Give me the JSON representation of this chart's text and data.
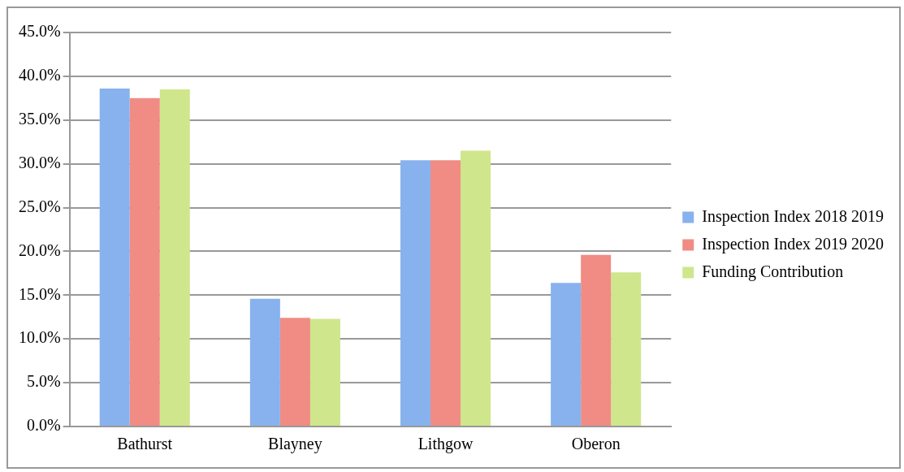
{
  "chart_data": {
    "type": "bar",
    "categories": [
      "Bathurst",
      "Blayney",
      "Lithgow",
      "Oberon"
    ],
    "series": [
      {
        "name": "Inspection Index 2018 2019",
        "color": "#88b2ee",
        "values": [
          38.6,
          14.6,
          30.4,
          16.4
        ]
      },
      {
        "name": "Inspection Index 2019 2020",
        "color": "#f08c84",
        "values": [
          37.5,
          12.4,
          30.4,
          19.6
        ]
      },
      {
        "name": "Funding Contribution",
        "color": "#cfe68c",
        "values": [
          38.5,
          12.3,
          31.5,
          17.6
        ]
      }
    ],
    "ylim": [
      0,
      45
    ],
    "yticks": [
      {
        "value": 0,
        "label": "0.0%"
      },
      {
        "value": 5,
        "label": "5.0%"
      },
      {
        "value": 10,
        "label": "10.0%"
      },
      {
        "value": 15,
        "label": "15.0%"
      },
      {
        "value": 20,
        "label": "20.0%"
      },
      {
        "value": 25,
        "label": "25.0%"
      },
      {
        "value": 30,
        "label": "30.0%"
      },
      {
        "value": 35,
        "label": "35.0%"
      },
      {
        "value": 40,
        "label": "40.0%"
      },
      {
        "value": 45,
        "label": "45.0%"
      }
    ],
    "grid": "y",
    "legend": "right"
  }
}
